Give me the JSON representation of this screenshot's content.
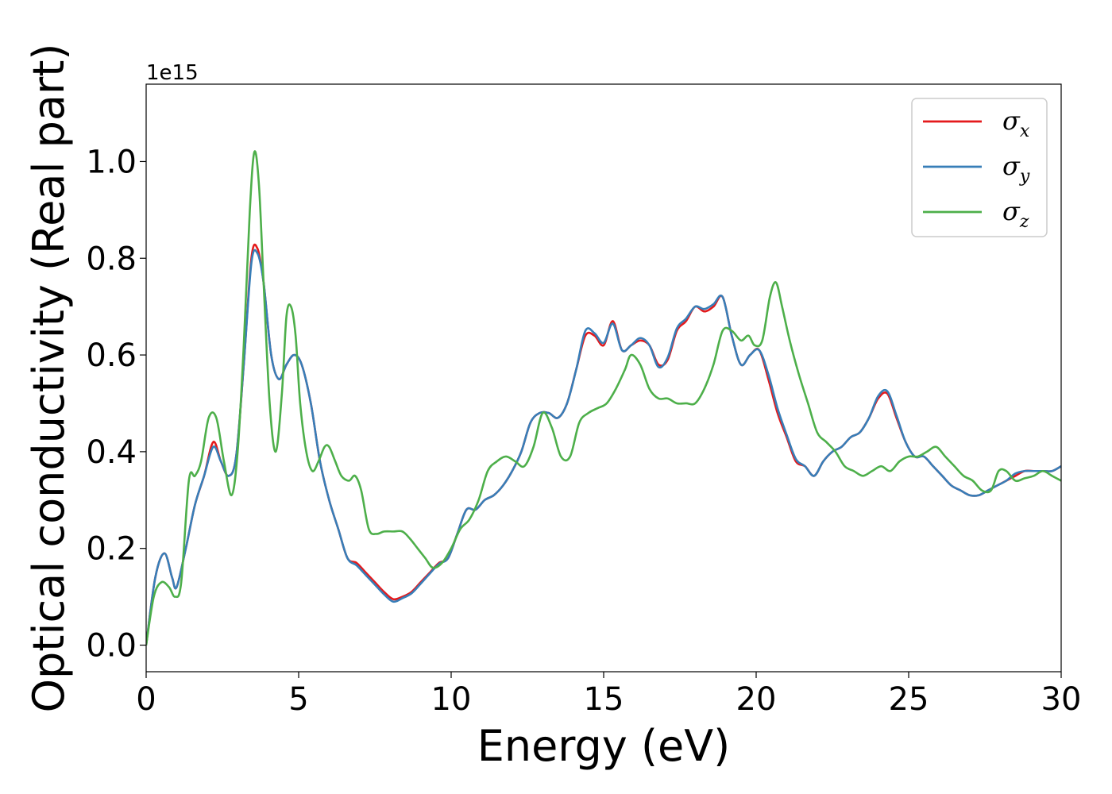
{
  "chart_data": {
    "type": "line",
    "title": "",
    "xlabel": "Energy (eV)",
    "ylabel": "Optical conductivity (Real part)",
    "y_offset_label": "1e15",
    "xlim": [
      0,
      30
    ],
    "ylim": [
      -0.055,
      1.16
    ],
    "xticks": [
      0,
      5,
      10,
      15,
      20,
      25,
      30
    ],
    "xtick_labels": [
      "0",
      "5",
      "10",
      "15",
      "20",
      "25",
      "30"
    ],
    "yticks": [
      0.0,
      0.2,
      0.4,
      0.6,
      0.8,
      1.0
    ],
    "ytick_labels": [
      "0.0",
      "0.2",
      "0.4",
      "0.6",
      "0.8",
      "1.0"
    ],
    "grid": false,
    "legend_position": "top-right",
    "series": [
      {
        "name": "σx",
        "symbol": "σ",
        "subscript": "x",
        "color": "#e41a1c",
        "x": [
          0,
          0.3,
          0.6,
          0.85,
          1.0,
          1.3,
          1.6,
          1.9,
          2.2,
          2.45,
          2.7,
          2.95,
          3.2,
          3.45,
          3.65,
          3.85,
          4.1,
          4.35,
          4.6,
          4.85,
          5.1,
          5.4,
          5.7,
          6.0,
          6.3,
          6.6,
          6.9,
          7.2,
          7.5,
          7.8,
          8.1,
          8.4,
          8.7,
          9.0,
          9.3,
          9.6,
          9.9,
          10.2,
          10.5,
          10.8,
          11.1,
          11.4,
          11.7,
          12.0,
          12.3,
          12.6,
          12.9,
          13.2,
          13.5,
          13.8,
          14.1,
          14.4,
          14.7,
          15.0,
          15.3,
          15.6,
          15.9,
          16.2,
          16.5,
          16.8,
          17.1,
          17.4,
          17.7,
          18.0,
          18.3,
          18.6,
          18.9,
          19.2,
          19.5,
          19.8,
          20.1,
          20.4,
          20.7,
          21.0,
          21.3,
          21.6,
          21.9,
          22.2,
          22.5,
          22.8,
          23.1,
          23.4,
          23.7,
          24.0,
          24.3,
          24.6,
          24.9,
          25.2,
          25.5,
          25.8,
          26.1,
          26.4,
          26.7,
          27.0,
          27.3,
          27.6,
          27.9,
          28.2,
          28.5,
          28.8,
          29.1,
          29.4,
          29.7,
          30.0
        ],
        "values": [
          0.0,
          0.14,
          0.19,
          0.14,
          0.12,
          0.2,
          0.29,
          0.35,
          0.42,
          0.38,
          0.35,
          0.39,
          0.58,
          0.8,
          0.82,
          0.75,
          0.6,
          0.55,
          0.58,
          0.6,
          0.58,
          0.5,
          0.38,
          0.3,
          0.24,
          0.18,
          0.17,
          0.15,
          0.13,
          0.11,
          0.095,
          0.1,
          0.11,
          0.13,
          0.15,
          0.17,
          0.18,
          0.23,
          0.28,
          0.28,
          0.3,
          0.31,
          0.33,
          0.36,
          0.4,
          0.46,
          0.48,
          0.48,
          0.47,
          0.5,
          0.57,
          0.64,
          0.64,
          0.62,
          0.67,
          0.61,
          0.62,
          0.63,
          0.62,
          0.58,
          0.59,
          0.65,
          0.67,
          0.7,
          0.69,
          0.7,
          0.72,
          0.64,
          0.58,
          0.6,
          0.61,
          0.55,
          0.48,
          0.43,
          0.38,
          0.37,
          0.35,
          0.38,
          0.4,
          0.41,
          0.43,
          0.44,
          0.47,
          0.51,
          0.52,
          0.47,
          0.42,
          0.39,
          0.39,
          0.37,
          0.35,
          0.33,
          0.32,
          0.31,
          0.31,
          0.32,
          0.33,
          0.34,
          0.35,
          0.36,
          0.36,
          0.36,
          0.36,
          0.37
        ]
      },
      {
        "name": "σy",
        "symbol": "σ",
        "subscript": "y",
        "color": "#377eb8",
        "x": [
          0,
          0.3,
          0.6,
          0.85,
          1.0,
          1.3,
          1.6,
          1.9,
          2.2,
          2.45,
          2.7,
          2.95,
          3.2,
          3.45,
          3.65,
          3.85,
          4.1,
          4.35,
          4.6,
          4.85,
          5.1,
          5.4,
          5.7,
          6.0,
          6.3,
          6.6,
          6.9,
          7.2,
          7.5,
          7.8,
          8.1,
          8.4,
          8.7,
          9.0,
          9.3,
          9.6,
          9.9,
          10.2,
          10.5,
          10.8,
          11.1,
          11.4,
          11.7,
          12.0,
          12.3,
          12.6,
          12.9,
          13.2,
          13.5,
          13.8,
          14.1,
          14.4,
          14.7,
          15.0,
          15.3,
          15.6,
          15.9,
          16.2,
          16.5,
          16.8,
          17.1,
          17.4,
          17.7,
          18.0,
          18.3,
          18.6,
          18.9,
          19.2,
          19.5,
          19.8,
          20.1,
          20.4,
          20.7,
          21.0,
          21.3,
          21.6,
          21.9,
          22.2,
          22.5,
          22.8,
          23.1,
          23.4,
          23.7,
          24.0,
          24.3,
          24.6,
          24.9,
          25.2,
          25.5,
          25.8,
          26.1,
          26.4,
          26.7,
          27.0,
          27.3,
          27.6,
          27.9,
          28.2,
          28.5,
          28.8,
          29.1,
          29.4,
          29.7,
          30.0
        ],
        "values": [
          0.0,
          0.14,
          0.19,
          0.14,
          0.12,
          0.2,
          0.29,
          0.35,
          0.41,
          0.38,
          0.35,
          0.39,
          0.58,
          0.79,
          0.81,
          0.75,
          0.6,
          0.55,
          0.58,
          0.6,
          0.58,
          0.5,
          0.38,
          0.3,
          0.24,
          0.18,
          0.165,
          0.145,
          0.125,
          0.105,
          0.09,
          0.097,
          0.107,
          0.127,
          0.148,
          0.168,
          0.18,
          0.23,
          0.28,
          0.28,
          0.3,
          0.31,
          0.33,
          0.36,
          0.4,
          0.46,
          0.48,
          0.48,
          0.47,
          0.5,
          0.57,
          0.65,
          0.645,
          0.625,
          0.665,
          0.61,
          0.62,
          0.635,
          0.62,
          0.575,
          0.595,
          0.655,
          0.675,
          0.7,
          0.695,
          0.705,
          0.72,
          0.64,
          0.58,
          0.6,
          0.61,
          0.56,
          0.49,
          0.435,
          0.385,
          0.37,
          0.35,
          0.38,
          0.4,
          0.41,
          0.43,
          0.44,
          0.47,
          0.515,
          0.525,
          0.475,
          0.42,
          0.39,
          0.39,
          0.37,
          0.35,
          0.33,
          0.32,
          0.31,
          0.31,
          0.32,
          0.33,
          0.34,
          0.355,
          0.36,
          0.36,
          0.36,
          0.36,
          0.37
        ]
      },
      {
        "name": "σz",
        "symbol": "σ",
        "subscript": "z",
        "color": "#4daf4a",
        "x": [
          0,
          0.25,
          0.5,
          0.75,
          0.95,
          1.15,
          1.4,
          1.6,
          1.8,
          2.05,
          2.3,
          2.55,
          2.8,
          3.0,
          3.2,
          3.4,
          3.55,
          3.7,
          3.85,
          4.05,
          4.25,
          4.45,
          4.6,
          4.75,
          4.9,
          5.05,
          5.25,
          5.45,
          5.65,
          5.85,
          6.0,
          6.2,
          6.4,
          6.65,
          6.85,
          7.05,
          7.3,
          7.55,
          7.8,
          8.1,
          8.4,
          8.65,
          8.9,
          9.15,
          9.4,
          9.7,
          10.0,
          10.3,
          10.6,
          10.9,
          11.2,
          11.5,
          11.8,
          12.1,
          12.4,
          12.7,
          13.0,
          13.3,
          13.6,
          13.9,
          14.2,
          14.5,
          14.8,
          15.1,
          15.4,
          15.7,
          15.9,
          16.2,
          16.5,
          16.8,
          17.1,
          17.4,
          17.7,
          18.0,
          18.3,
          18.6,
          18.9,
          19.2,
          19.5,
          19.75,
          19.95,
          20.2,
          20.45,
          20.65,
          20.85,
          21.1,
          21.4,
          21.7,
          22.0,
          22.3,
          22.6,
          22.9,
          23.2,
          23.5,
          23.8,
          24.1,
          24.4,
          24.7,
          25.0,
          25.3,
          25.6,
          25.9,
          26.2,
          26.5,
          26.8,
          27.1,
          27.4,
          27.7,
          27.95,
          28.2,
          28.5,
          28.8,
          29.1,
          29.4,
          29.7,
          30.0
        ],
        "values": [
          0.0,
          0.1,
          0.13,
          0.12,
          0.1,
          0.13,
          0.34,
          0.35,
          0.38,
          0.47,
          0.47,
          0.38,
          0.31,
          0.4,
          0.62,
          0.9,
          1.02,
          0.95,
          0.75,
          0.5,
          0.4,
          0.52,
          0.68,
          0.7,
          0.64,
          0.5,
          0.4,
          0.36,
          0.38,
          0.41,
          0.41,
          0.38,
          0.35,
          0.34,
          0.35,
          0.32,
          0.24,
          0.23,
          0.235,
          0.235,
          0.235,
          0.22,
          0.2,
          0.18,
          0.16,
          0.17,
          0.2,
          0.24,
          0.26,
          0.3,
          0.36,
          0.38,
          0.39,
          0.38,
          0.37,
          0.41,
          0.48,
          0.45,
          0.39,
          0.39,
          0.46,
          0.48,
          0.49,
          0.5,
          0.53,
          0.57,
          0.6,
          0.58,
          0.53,
          0.51,
          0.51,
          0.5,
          0.5,
          0.5,
          0.53,
          0.58,
          0.65,
          0.65,
          0.63,
          0.64,
          0.62,
          0.63,
          0.72,
          0.75,
          0.7,
          0.63,
          0.56,
          0.5,
          0.44,
          0.42,
          0.4,
          0.37,
          0.36,
          0.35,
          0.36,
          0.37,
          0.36,
          0.38,
          0.39,
          0.39,
          0.4,
          0.41,
          0.39,
          0.37,
          0.35,
          0.34,
          0.32,
          0.32,
          0.36,
          0.36,
          0.34,
          0.345,
          0.35,
          0.36,
          0.35,
          0.34
        ]
      }
    ]
  }
}
